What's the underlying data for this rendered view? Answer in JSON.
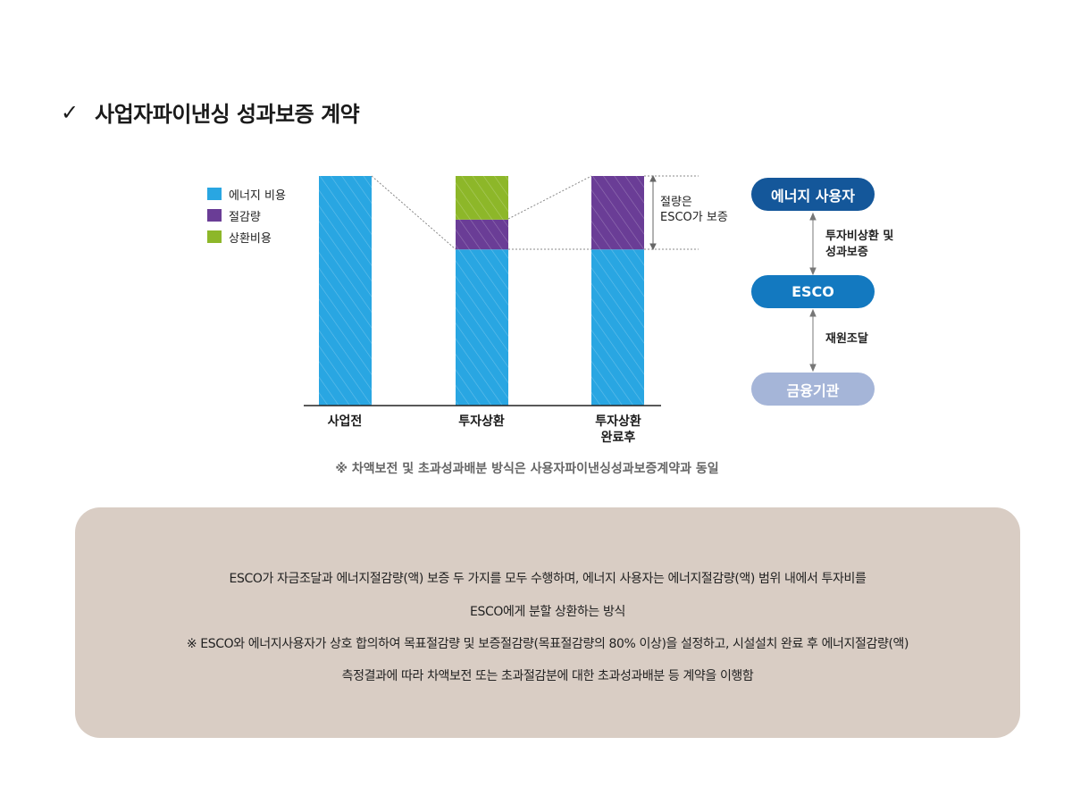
{
  "heading": {
    "check": "✓",
    "title": "사업자파이낸싱 성과보증 계약"
  },
  "legend": [
    {
      "label": "에너지 비용",
      "color": "#29a6e2"
    },
    {
      "label": "절감량",
      "color": "#6a3d96"
    },
    {
      "label": "상환비용",
      "color": "#8db729"
    }
  ],
  "chart_data": {
    "type": "bar",
    "stacked": true,
    "categories": [
      "사업전",
      "투자상환",
      "투자상환 완료후"
    ],
    "series": [
      {
        "name": "에너지 비용",
        "values": [
          100,
          68,
          68
        ],
        "color": "#29a6e2"
      },
      {
        "name": "절감량",
        "values": [
          0,
          13,
          32
        ],
        "color": "#6a3d96"
      },
      {
        "name": "상환비용",
        "values": [
          0,
          19,
          0
        ],
        "color": "#8db729"
      }
    ],
    "category_labels": [
      [
        "사업전"
      ],
      [
        "투자상환"
      ],
      [
        "투자상환",
        "완료후"
      ]
    ],
    "annotation": [
      "절량은",
      "ESCO가 보증"
    ],
    "ylim": [
      0,
      100
    ]
  },
  "flow": {
    "nodes": [
      {
        "label": "에너지 사용자",
        "color": "#14579a"
      },
      {
        "label": "ESCO",
        "color": "#1379c0"
      },
      {
        "label": "금융기관",
        "color": "#a5b5d8"
      }
    ],
    "arrows": [
      [
        "투자비상환 및",
        "성과보증"
      ],
      [
        "재원조달"
      ]
    ]
  },
  "footnote": "※ 차액보전 및 초과성과배분 방식은 사용자파이낸싱성과보증계약과 동일",
  "description": [
    "ESCO가 자금조달과 에너지절감량(액) 보증 두 가지를 모두 수행하며, 에너지 사용자는 에너지절감량(액) 범위 내에서 투자비를",
    "ESCO에게 분할 상환하는 방식",
    "※ ESCO와 에너지사용자가 상호 합의하여 목표절감량 및 보증절감량(목표절감량의 80% 이상)을 설정하고, 시설설치 완료 후 에너지절감량(액)",
    "측정결과에 따라 차액보전 또는 초과절감분에 대한 초과성과배분 등 계약을 이행함"
  ]
}
